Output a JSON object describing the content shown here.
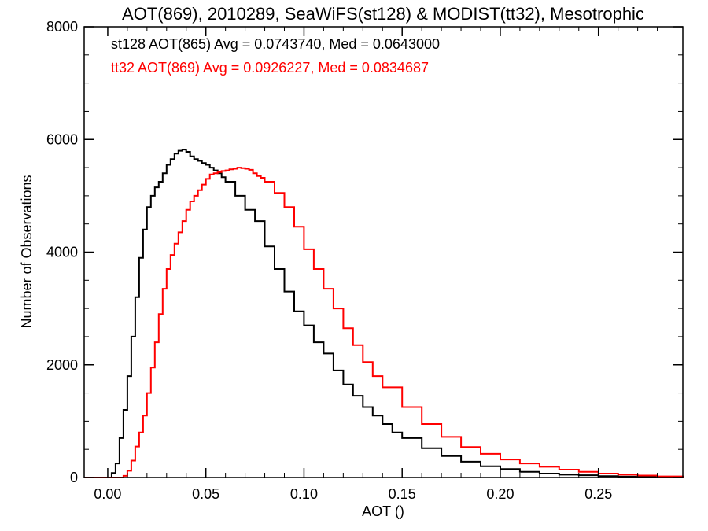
{
  "chart_data": {
    "type": "line",
    "title": "AOT(869), 2010289, SeaWiFS(st128) & MODIST(tt32), Mesotrophic",
    "xlabel": "AOT ()",
    "ylabel": "Number of Observations",
    "xlim": [
      -0.012,
      0.293
    ],
    "ylim": [
      0,
      8000
    ],
    "xticks": [
      0.0,
      0.05,
      0.1,
      0.15,
      0.2,
      0.25
    ],
    "xtick_labels": [
      "0.00",
      "0.05",
      "0.10",
      "0.15",
      "0.20",
      "0.25"
    ],
    "yticks": [
      0,
      2000,
      4000,
      6000,
      8000
    ],
    "ytick_labels": [
      "0",
      "2000",
      "4000",
      "6000",
      "8000"
    ],
    "grid": false,
    "annotations": [
      {
        "text": "st128 AOT(865) Avg = 0.0743740, Med = 0.0643000",
        "color": "#000000"
      },
      {
        "text": "tt32 AOT(869) Avg = 0.0926227, Med = 0.0834687",
        "color": "#ff0000"
      }
    ],
    "series": [
      {
        "color": "#000000",
        "x": [
          -0.012,
          0.0,
          0.002,
          0.004,
          0.006,
          0.008,
          0.01,
          0.012,
          0.014,
          0.016,
          0.018,
          0.02,
          0.022,
          0.024,
          0.026,
          0.028,
          0.03,
          0.032,
          0.034,
          0.036,
          0.038,
          0.04,
          0.042,
          0.044,
          0.046,
          0.048,
          0.05,
          0.052,
          0.054,
          0.056,
          0.058,
          0.06,
          0.065,
          0.07,
          0.075,
          0.08,
          0.085,
          0.09,
          0.095,
          0.1,
          0.105,
          0.11,
          0.115,
          0.12,
          0.125,
          0.13,
          0.135,
          0.14,
          0.145,
          0.15,
          0.16,
          0.17,
          0.18,
          0.19,
          0.2,
          0.21,
          0.22,
          0.23,
          0.24,
          0.25,
          0.26,
          0.27,
          0.28,
          0.293
        ],
        "y": [
          0,
          0,
          80,
          250,
          700,
          1200,
          1800,
          2500,
          3200,
          3900,
          4400,
          4800,
          5000,
          5150,
          5250,
          5400,
          5550,
          5650,
          5750,
          5800,
          5820,
          5780,
          5700,
          5650,
          5620,
          5580,
          5550,
          5500,
          5450,
          5400,
          5330,
          5250,
          5000,
          4750,
          4550,
          4100,
          3700,
          3300,
          2950,
          2700,
          2400,
          2200,
          1900,
          1650,
          1450,
          1250,
          1100,
          950,
          800,
          700,
          520,
          380,
          280,
          200,
          150,
          100,
          70,
          50,
          40,
          25,
          15,
          10,
          5,
          0
        ]
      },
      {
        "color": "#ff0000",
        "x": [
          -0.012,
          0.006,
          0.008,
          0.01,
          0.012,
          0.014,
          0.016,
          0.018,
          0.02,
          0.022,
          0.024,
          0.026,
          0.028,
          0.03,
          0.032,
          0.034,
          0.036,
          0.038,
          0.04,
          0.042,
          0.044,
          0.046,
          0.048,
          0.05,
          0.052,
          0.054,
          0.056,
          0.058,
          0.06,
          0.062,
          0.064,
          0.066,
          0.068,
          0.07,
          0.072,
          0.074,
          0.076,
          0.078,
          0.08,
          0.085,
          0.09,
          0.095,
          0.1,
          0.105,
          0.11,
          0.115,
          0.12,
          0.125,
          0.13,
          0.135,
          0.14,
          0.15,
          0.16,
          0.17,
          0.18,
          0.19,
          0.2,
          0.21,
          0.22,
          0.23,
          0.24,
          0.25,
          0.26,
          0.27,
          0.28,
          0.293
        ],
        "y": [
          0,
          0,
          30,
          120,
          300,
          550,
          800,
          1100,
          1500,
          1950,
          2400,
          2900,
          3350,
          3700,
          3950,
          4150,
          4350,
          4550,
          4750,
          4900,
          5000,
          5100,
          5200,
          5300,
          5380,
          5400,
          5420,
          5440,
          5450,
          5470,
          5480,
          5500,
          5490,
          5480,
          5460,
          5400,
          5350,
          5320,
          5250,
          5050,
          4800,
          4450,
          4050,
          3700,
          3350,
          3000,
          2650,
          2350,
          2050,
          1800,
          1600,
          1250,
          950,
          720,
          540,
          420,
          320,
          250,
          190,
          140,
          100,
          70,
          50,
          35,
          20,
          0
        ]
      }
    ]
  }
}
